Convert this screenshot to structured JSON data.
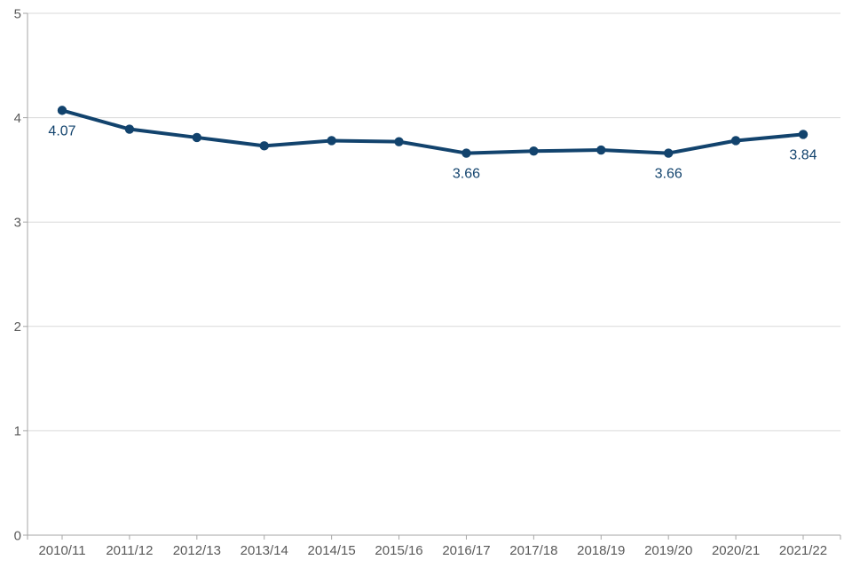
{
  "chart_data": {
    "type": "line",
    "title": "",
    "xlabel": "",
    "ylabel": "",
    "categories": [
      "2010/11",
      "2011/12",
      "2012/13",
      "2013/14",
      "2014/15",
      "2015/16",
      "2016/17",
      "2017/18",
      "2018/19",
      "2019/20",
      "2020/21",
      "2021/22"
    ],
    "series": [
      {
        "name": "value",
        "values": [
          4.07,
          3.89,
          3.81,
          3.73,
          3.78,
          3.77,
          3.66,
          3.68,
          3.69,
          3.66,
          3.78,
          3.84
        ]
      }
    ],
    "point_labels": [
      {
        "index": 0,
        "text": "4.07"
      },
      {
        "index": 6,
        "text": "3.66"
      },
      {
        "index": 9,
        "text": "3.66"
      },
      {
        "index": 11,
        "text": "3.84"
      }
    ],
    "ylim": [
      0,
      5
    ],
    "yticks": [
      0,
      1,
      2,
      3,
      4,
      5
    ],
    "grid": "horizontal",
    "legend": "none",
    "colors": {
      "line": "#12436D",
      "marker": "#12436D",
      "data_label": "#12436D",
      "axis": "#A6A6A6",
      "gridline": "#D9D9D9",
      "tick_label": "#595959",
      "background": "#FFFFFF"
    }
  }
}
